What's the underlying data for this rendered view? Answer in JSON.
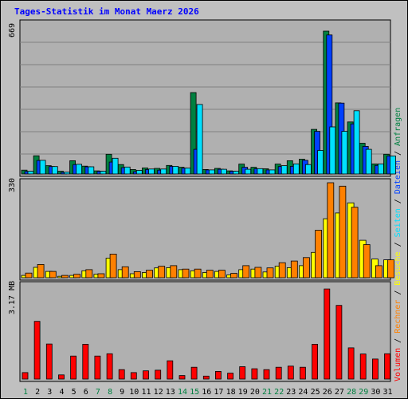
{
  "title": "Tages-Statistik im Monat Maerz 2026",
  "colors": {
    "background": "#c0c0c0",
    "plot_bg": "#b0b0b0",
    "title": "#0000ff",
    "anfragen": "#008040",
    "dateien": "#0040ff",
    "seiten": "#00e0ff",
    "besuche": "#ffff00",
    "rechner": "#ff8000",
    "volumen": "#ff0000",
    "weekend_label": "#008040",
    "weekday_label": "#000000"
  },
  "panels": {
    "top": {
      "scale_label": "669"
    },
    "mid": {
      "scale_label": "330"
    },
    "bottom": {
      "scale_label": "3.17 MB"
    }
  },
  "legend": [
    {
      "text": "Volumen",
      "color": "#ff0000"
    },
    {
      "text": " / ",
      "color": "#000000"
    },
    {
      "text": "Rechner",
      "color": "#ff8000"
    },
    {
      "text": " / ",
      "color": "#000000"
    },
    {
      "text": "Besuche",
      "color": "#ffff00"
    },
    {
      "text": " / ",
      "color": "#000000"
    },
    {
      "text": "Seiten",
      "color": "#00e0ff"
    },
    {
      "text": " / ",
      "color": "#000000"
    },
    {
      "text": "Dateien",
      "color": "#0040ff"
    },
    {
      "text": " / ",
      "color": "#000000"
    },
    {
      "text": "Anfragen",
      "color": "#008040"
    }
  ],
  "chart_data": {
    "type": "bar",
    "title": "Tages-Statistik im Monat Maerz 2026",
    "days": [
      "1",
      "2",
      "3",
      "4",
      "5",
      "6",
      "7",
      "8",
      "9",
      "10",
      "11",
      "12",
      "13",
      "14",
      "15",
      "16",
      "17",
      "18",
      "19",
      "20",
      "21",
      "22",
      "23",
      "24",
      "25",
      "26",
      "27",
      "28",
      "29",
      "30",
      "31"
    ],
    "weekend_days": [
      "1",
      "7",
      "8",
      "14",
      "15",
      "21",
      "22",
      "28",
      "29"
    ],
    "top_panel": {
      "ymax": 669,
      "series": [
        {
          "name": "Anfragen",
          "values": [
            17,
            81,
            37,
            12,
            59,
            35,
            14,
            88,
            42,
            20,
            27,
            25,
            38,
            30,
            363,
            20,
            25,
            14,
            44,
            30,
            23,
            44,
            59,
            66,
            199,
            637,
            317,
            232,
            137,
            45,
            88
          ]
        },
        {
          "name": "Dateien",
          "values": [
            11,
            60,
            33,
            7,
            42,
            32,
            12,
            53,
            28,
            10,
            20,
            17,
            34,
            26,
            110,
            18,
            21,
            12,
            30,
            23,
            18,
            33,
            34,
            61,
            190,
            620,
            316,
            223,
            123,
            38,
            80
          ]
        },
        {
          "name": "Seiten",
          "values": [
            12,
            61,
            33,
            8,
            43,
            32,
            12,
            70,
            31,
            16,
            22,
            22,
            34,
            26,
            310,
            18,
            21,
            12,
            21,
            24,
            18,
            37,
            45,
            42,
            105,
            210,
            190,
            282,
            110,
            45,
            80
          ]
        }
      ]
    },
    "mid_panel": {
      "ymax": 330,
      "series": [
        {
          "name": "Besuche",
          "values": [
            8,
            36,
            22,
            5,
            8,
            24,
            12,
            68,
            28,
            14,
            18,
            34,
            35,
            28,
            24,
            18,
            22,
            10,
            28,
            30,
            20,
            40,
            35,
            42,
            88,
            205,
            225,
            260,
            130,
            65,
            62
          ]
        },
        {
          "name": "Rechner",
          "values": [
            16,
            46,
            22,
            8,
            12,
            28,
            14,
            82,
            38,
            21,
            26,
            40,
            42,
            30,
            30,
            26,
            26,
            15,
            42,
            36,
            34,
            52,
            58,
            70,
            165,
            330,
            318,
            245,
            115,
            42,
            62
          ]
        }
      ]
    },
    "bottom_panel": {
      "ymax": 3.17,
      "unit": "MB",
      "series": [
        {
          "name": "Volumen",
          "values": [
            0.22,
            1.96,
            1.19,
            0.14,
            0.78,
            1.18,
            0.78,
            0.86,
            0.32,
            0.22,
            0.28,
            0.3,
            0.62,
            0.12,
            0.4,
            0.1,
            0.26,
            0.2,
            0.42,
            0.35,
            0.32,
            0.4,
            0.44,
            0.4,
            1.18,
            3.06,
            2.5,
            1.06,
            0.85,
            0.68,
            0.86
          ]
        }
      ]
    }
  }
}
